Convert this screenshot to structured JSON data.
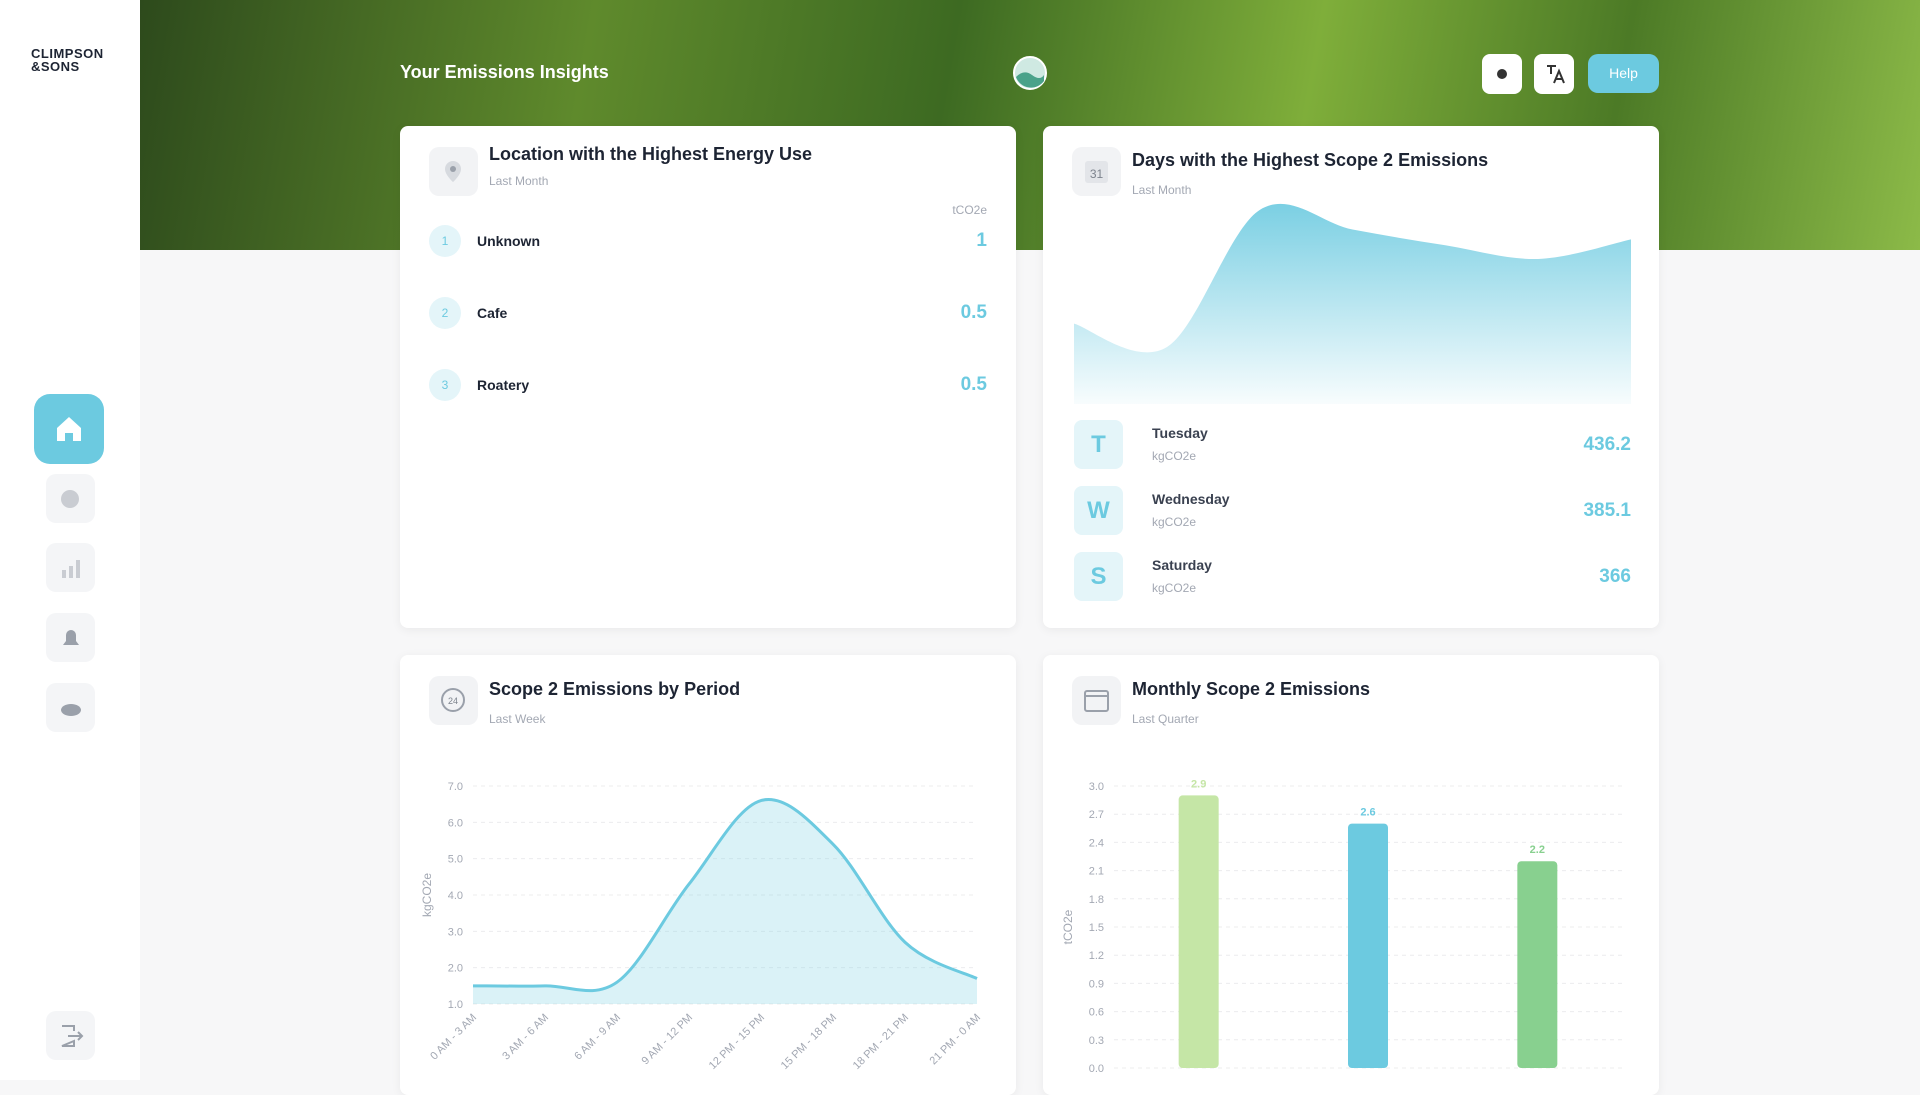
{
  "sidebar": {
    "logo": {
      "line1": "CLIMPSON",
      "line2": "&SONS"
    }
  },
  "header": {
    "title": "Your Emissions Insights",
    "help_button": "Help"
  },
  "cards": [
    {
      "title": "Location with the Highest Energy Use",
      "subtitle": "Last Month",
      "unit": "tCO2e",
      "rows": [
        {
          "rank": 1,
          "name": "Unknown",
          "value": 1
        },
        {
          "rank": 2,
          "name": "Cafe",
          "value": 0.5
        },
        {
          "rank": 3,
          "name": "Roatery",
          "value": 0.5
        }
      ]
    },
    {
      "title": "Days with the Highest Scope 2 Emissions",
      "subtitle": "Last Month",
      "chart_data": {
        "type": "area",
        "values": [
          41,
          29,
          99,
          89,
          81,
          74,
          84
        ],
        "ylim": [
          0,
          100
        ],
        "color": "#6ccae0"
      },
      "days": [
        {
          "initial": "T",
          "name": "Tuesday",
          "unit": "kgCO2e",
          "value": 436.2
        },
        {
          "initial": "W",
          "name": "Wednesday",
          "unit": "kgCO2e",
          "value": 385.1
        },
        {
          "initial": "S",
          "name": "Saturday",
          "unit": "kgCO2e",
          "value": 366
        }
      ]
    },
    {
      "title": "Scope 2 Emissions by Period",
      "subtitle": "Last Week",
      "chart_data": {
        "type": "area",
        "ylabel": "kgCO2e",
        "color": "#6ccae0",
        "categories": [
          "0 AM - 3 AM",
          "3 AM - 6 AM",
          "6 AM - 9 AM",
          "9 AM - 12 PM",
          "12 PM - 15 PM",
          "15 PM - 18 PM",
          "18 PM - 21 PM",
          "21 PM - 0 AM"
        ],
        "values": [
          1.5,
          1.5,
          1.6,
          4.3,
          6.6,
          5.4,
          2.7,
          1.7
        ],
        "ylim": [
          1,
          7
        ],
        "yticks": [
          {
            "value": 1,
            "label": "1.0"
          },
          {
            "value": 2,
            "label": "2.0"
          },
          {
            "value": 3,
            "label": "3.0"
          },
          {
            "value": 4,
            "label": "4.0"
          },
          {
            "value": 5,
            "label": "5.0"
          },
          {
            "value": 6,
            "label": "6.0"
          },
          {
            "value": 7,
            "label": "7.0"
          }
        ],
        "grid": true
      }
    },
    {
      "title": "Monthly Scope 2 Emissions",
      "subtitle": "Last Quarter",
      "chart_data": {
        "type": "bar",
        "ylabel": "tCO2e",
        "categories": [
          null,
          null,
          null
        ],
        "values": [
          2.9,
          2.6,
          2.2
        ],
        "colors": [
          "#c5e6a6",
          "#6ccae0",
          "#88d08f"
        ],
        "ylim": [
          0,
          3
        ],
        "yticks": [
          {
            "value": 0,
            "label": "0.0"
          },
          {
            "value": 0.3,
            "label": "0.3"
          },
          {
            "value": 0.6,
            "label": "0.6"
          },
          {
            "value": 0.9,
            "label": "0.9"
          },
          {
            "value": 1.2,
            "label": "1.2"
          },
          {
            "value": 1.5,
            "label": "1.5"
          },
          {
            "value": 1.8,
            "label": "1.8"
          },
          {
            "value": 2.1,
            "label": "2.1"
          },
          {
            "value": 2.4,
            "label": "2.4"
          },
          {
            "value": 2.7,
            "label": "2.7"
          },
          {
            "value": 3,
            "label": "3.0"
          }
        ],
        "grid": true
      }
    }
  ]
}
